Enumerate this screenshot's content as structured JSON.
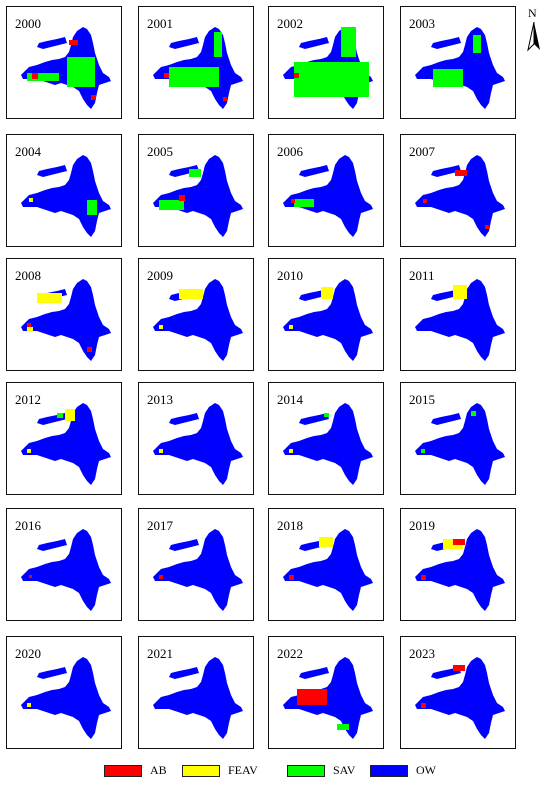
{
  "panels": [
    {
      "year": "2000",
      "feav": [],
      "ab": [
        [
          62,
          33,
          9,
          5
        ],
        [
          25,
          66,
          6,
          6
        ],
        [
          84,
          88,
          5,
          5
        ]
      ],
      "sav": [
        [
          60,
          50,
          28,
          30
        ],
        [
          20,
          66,
          32,
          8
        ]
      ]
    },
    {
      "year": "2001",
      "feav": [],
      "ab": [
        [
          25,
          66,
          5,
          5
        ],
        [
          84,
          90,
          4,
          4
        ]
      ],
      "sav": [
        [
          75,
          25,
          8,
          25
        ],
        [
          30,
          60,
          50,
          20
        ]
      ]
    },
    {
      "year": "2002",
      "feav": [],
      "ab": [
        [
          25,
          66,
          5,
          5
        ]
      ],
      "sav": [
        [
          25,
          55,
          75,
          35
        ],
        [
          72,
          20,
          15,
          30
        ]
      ]
    },
    {
      "year": "2003",
      "feav": [],
      "ab": [],
      "sav": [
        [
          32,
          62,
          30,
          18
        ],
        [
          72,
          28,
          8,
          18
        ]
      ]
    },
    {
      "year": "2004",
      "feav": [
        [
          22,
          63,
          4,
          4
        ]
      ],
      "ab": [],
      "sav": [
        [
          80,
          65,
          10,
          15
        ]
      ]
    },
    {
      "year": "2005",
      "feav": [],
      "ab": [
        [
          40,
          60,
          6,
          6
        ]
      ],
      "sav": [
        [
          50,
          34,
          12,
          8
        ],
        [
          20,
          65,
          25,
          10
        ]
      ]
    },
    {
      "year": "2006",
      "feav": [],
      "ab": [
        [
          22,
          64,
          4,
          4
        ]
      ],
      "sav": [
        [
          25,
          64,
          20,
          8
        ]
      ]
    },
    {
      "year": "2007",
      "feav": [],
      "ab": [
        [
          54,
          35,
          12,
          6
        ],
        [
          22,
          64,
          4,
          4
        ],
        [
          84,
          90,
          4,
          4
        ]
      ],
      "sav": []
    },
    {
      "year": "2008",
      "feav": [
        [
          30,
          34,
          25,
          10
        ],
        [
          20,
          68,
          6,
          5
        ]
      ],
      "ab": [
        [
          20,
          64,
          4,
          4
        ],
        [
          80,
          88,
          5,
          5
        ]
      ],
      "sav": []
    },
    {
      "year": "2009",
      "feav": [
        [
          40,
          30,
          24,
          10
        ],
        [
          20,
          66,
          4,
          4
        ]
      ],
      "ab": [],
      "sav": []
    },
    {
      "year": "2010",
      "feav": [
        [
          52,
          28,
          12,
          12
        ],
        [
          20,
          66,
          4,
          4
        ]
      ],
      "ab": [],
      "sav": []
    },
    {
      "year": "2011",
      "feav": [
        [
          52,
          26,
          14,
          14
        ]
      ],
      "ab": [],
      "sav": []
    },
    {
      "year": "2012",
      "feav": [
        [
          58,
          26,
          10,
          12
        ],
        [
          20,
          66,
          4,
          4
        ]
      ],
      "ab": [],
      "sav": [
        [
          50,
          30,
          6,
          5
        ]
      ]
    },
    {
      "year": "2013",
      "feav": [
        [
          20,
          66,
          4,
          4
        ]
      ],
      "ab": [],
      "sav": []
    },
    {
      "year": "2014",
      "feav": [
        [
          20,
          66,
          4,
          4
        ]
      ],
      "ab": [],
      "sav": [
        [
          55,
          30,
          5,
          4
        ]
      ]
    },
    {
      "year": "2015",
      "feav": [],
      "ab": [],
      "sav": [
        [
          20,
          66,
          4,
          4
        ],
        [
          70,
          28,
          5,
          5
        ]
      ]
    },
    {
      "year": "2016",
      "feav": [],
      "ab": [
        [
          22,
          66,
          3,
          3
        ]
      ],
      "sav": []
    },
    {
      "year": "2017",
      "feav": [],
      "ab": [
        [
          20,
          66,
          4,
          4
        ]
      ],
      "sav": []
    },
    {
      "year": "2018",
      "feav": [
        [
          50,
          28,
          14,
          10
        ]
      ],
      "ab": [
        [
          20,
          66,
          5,
          5
        ]
      ],
      "sav": []
    },
    {
      "year": "2019",
      "feav": [
        [
          42,
          30,
          20,
          10
        ]
      ],
      "ab": [
        [
          52,
          30,
          12,
          6
        ],
        [
          20,
          66,
          5,
          5
        ]
      ],
      "sav": []
    },
    {
      "year": "2020",
      "feav": [
        [
          20,
          66,
          4,
          4
        ]
      ],
      "ab": [],
      "sav": []
    },
    {
      "year": "2021",
      "feav": [],
      "ab": [],
      "sav": []
    },
    {
      "year": "2022",
      "feav": [],
      "ab": [
        [
          28,
          52,
          30,
          16
        ]
      ],
      "sav": [
        [
          68,
          87,
          12,
          6
        ]
      ]
    },
    {
      "year": "2023",
      "feav": [],
      "ab": [
        [
          52,
          28,
          12,
          6
        ],
        [
          20,
          66,
          5,
          5
        ]
      ],
      "sav": []
    }
  ],
  "north": {
    "label": "N"
  },
  "legend": [
    {
      "label": "AB",
      "color": "#ff0000"
    },
    {
      "label": "FEAV",
      "color": "#ffff00"
    },
    {
      "label": "SAV",
      "color": "#00ff00"
    },
    {
      "label": "OW",
      "color": "#0000ff"
    }
  ],
  "colors": {
    "ab": "#ff0000",
    "feav": "#ffff00",
    "sav": "#00ff00",
    "ow": "#0000ff"
  }
}
